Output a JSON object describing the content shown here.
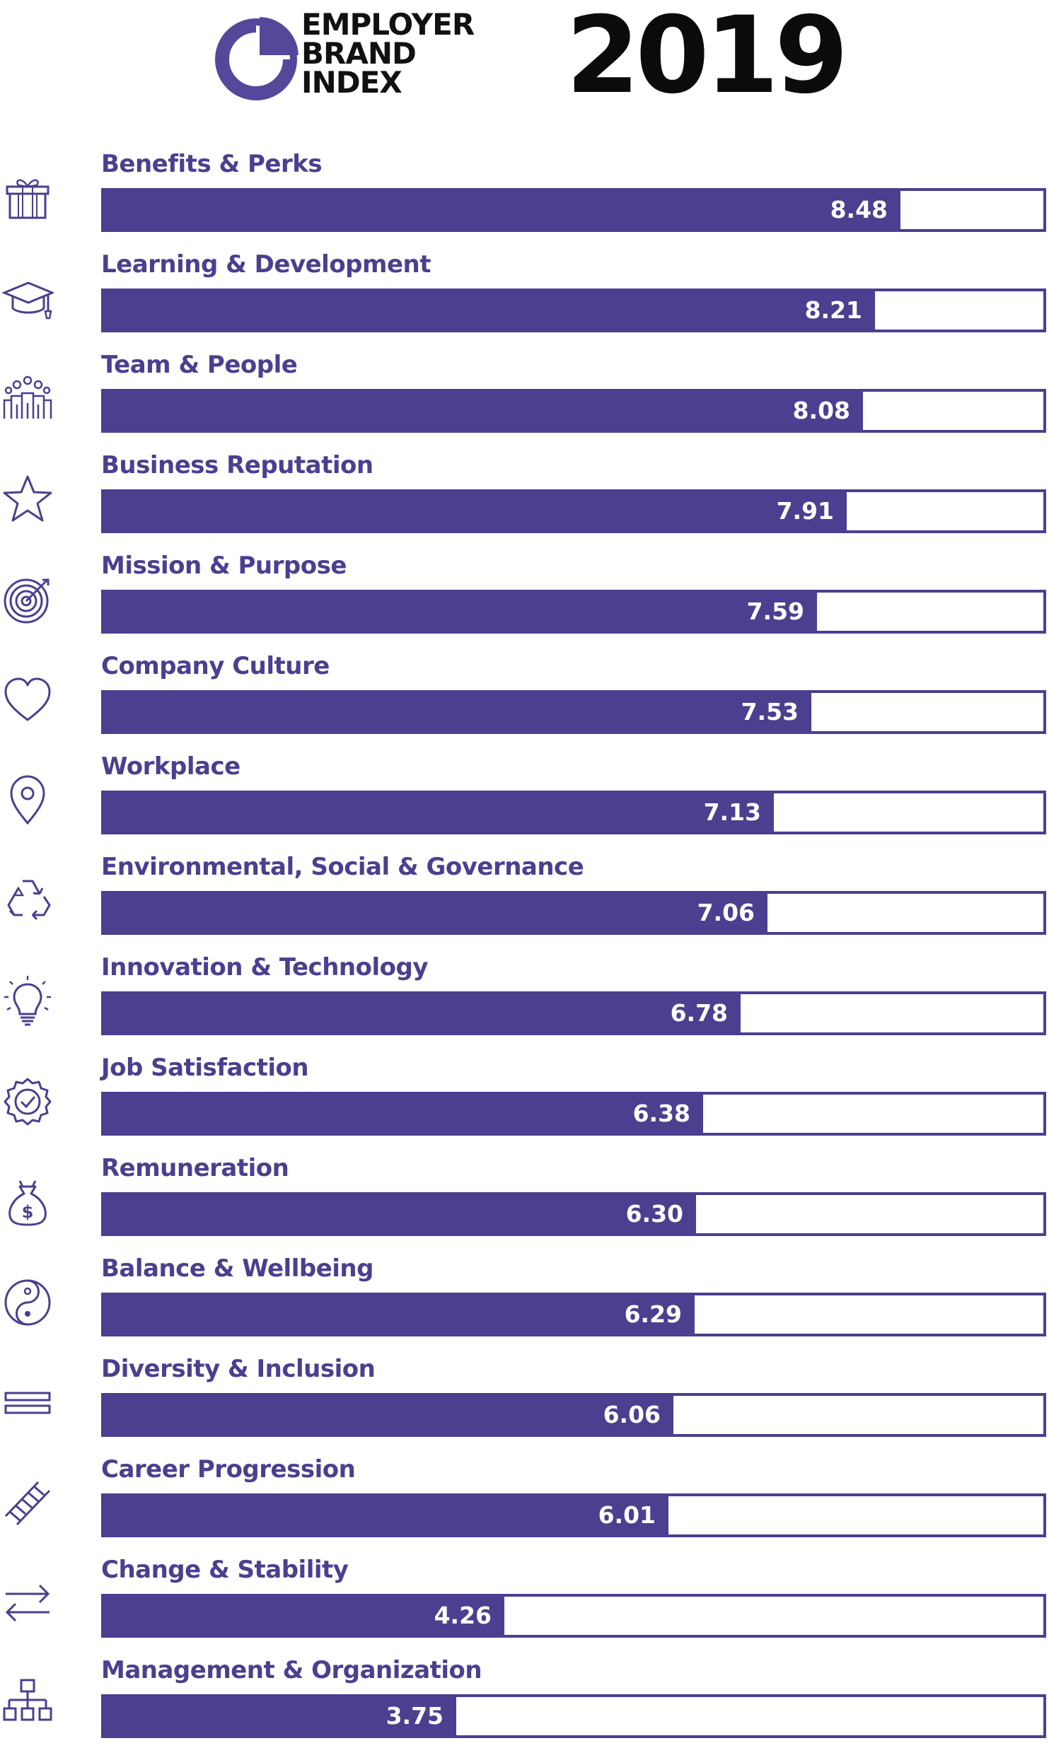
{
  "header": {
    "logo_lines": [
      "EMPLOYER",
      "BRAND",
      "INDEX"
    ],
    "year": "2019"
  },
  "colors": {
    "accent": "#4b3f8f",
    "logo_mark": "#54489b",
    "year_text": "#0b0b0b",
    "background": "#ffffff"
  },
  "chart_data": {
    "type": "bar",
    "orientation": "horizontal",
    "xlim": [
      0,
      10
    ],
    "grid": false,
    "categories": [
      "Benefits & Perks",
      "Learning & Development",
      "Team & People",
      "Business Reputation",
      "Mission & Purpose",
      "Company Culture",
      "Workplace",
      "Environmental, Social & Governance",
      "Innovation & Technology",
      "Job Satisfaction",
      "Remuneration",
      "Balance & Wellbeing",
      "Diversity & Inclusion",
      "Career Progression",
      "Change & Stability",
      "Management & Organization"
    ],
    "values": [
      8.48,
      8.21,
      8.08,
      7.91,
      7.59,
      7.53,
      7.13,
      7.06,
      6.78,
      6.38,
      6.3,
      6.29,
      6.06,
      6.01,
      4.26,
      3.75
    ],
    "value_labels": [
      "8.48",
      "8.21",
      "8.08",
      "7.91",
      "7.59",
      "7.53",
      "7.13",
      "7.06",
      "6.78",
      "6.38",
      "6.30",
      "6.29",
      "6.06",
      "6.01",
      "4.26",
      "3.75"
    ],
    "icons": [
      "gift-icon",
      "graduation-cap-icon",
      "people-group-icon",
      "star-icon",
      "target-icon",
      "heart-icon",
      "location-pin-icon",
      "recycle-icon",
      "lightbulb-icon",
      "badge-check-icon",
      "money-bag-icon",
      "yin-yang-icon",
      "equals-icon",
      "ladder-icon",
      "swap-arrows-icon",
      "org-chart-icon"
    ]
  }
}
